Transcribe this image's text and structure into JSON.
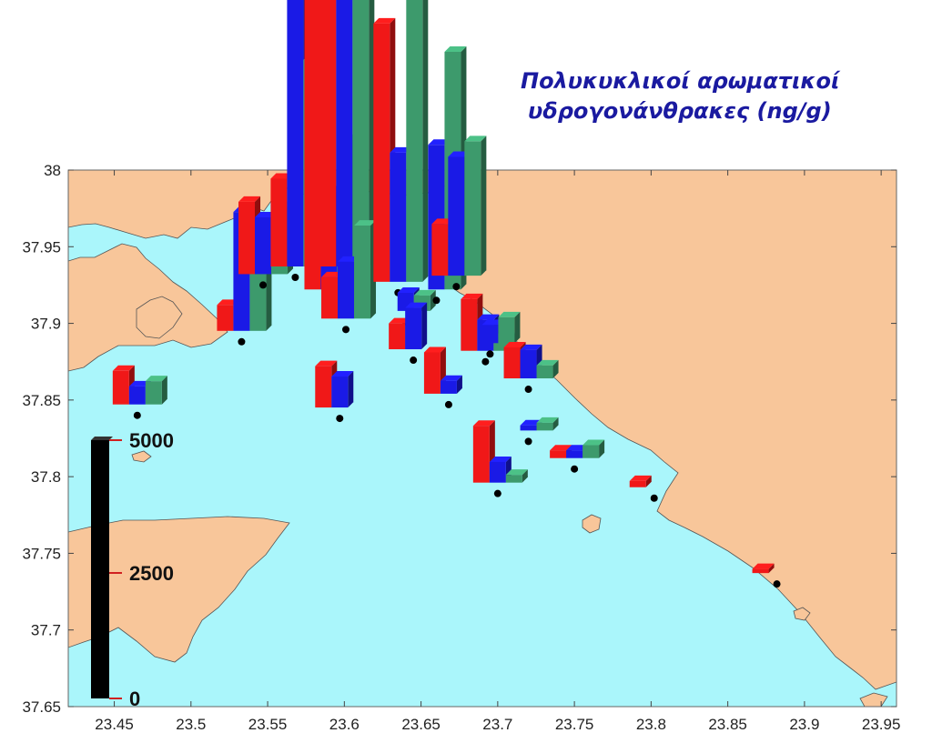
{
  "title": {
    "line1": "Πολυκυκλικοί αρωματικοί",
    "line2": "υδρογονάνθρακες (ng/g)"
  },
  "colors": {
    "sea": "#aaf6fb",
    "land": "#f8c69a",
    "coast": "#555555",
    "series": [
      "#f01818",
      "#1a1ae6",
      "#3d9a6c"
    ],
    "scale_bar": "#000000",
    "tick_mark": "#d02020"
  },
  "map": {
    "x_ticks": [
      "23.45",
      "23.5",
      "23.55",
      "23.6",
      "23.65",
      "23.7",
      "23.75",
      "23.8",
      "23.85",
      "23.9",
      "23.95"
    ],
    "y_ticks": [
      "38",
      "37.95",
      "37.9",
      "37.85",
      "37.8",
      "37.75",
      "37.7",
      "37.65"
    ],
    "x_range": [
      23.42,
      23.96
    ],
    "y_range": [
      37.65,
      38.0
    ]
  },
  "scale": {
    "max_label": "5000",
    "mid_label": "2500",
    "min_label": "0",
    "max_value": 5000
  },
  "chart_data": {
    "type": "bar",
    "unit": "ng/g",
    "series_count": 3,
    "stations": [
      {
        "lon": 23.465,
        "lat": 37.84,
        "values": [
          650,
          350,
          450
        ]
      },
      {
        "lon": 23.533,
        "lat": 37.888,
        "values": [
          500,
          2300,
          1700
        ]
      },
      {
        "lon": 23.547,
        "lat": 37.925,
        "values": [
          1400,
          1100,
          1300
        ]
      },
      {
        "lon": 23.568,
        "lat": 37.93,
        "values": [
          1700,
          5900,
          4000
        ]
      },
      {
        "lon": 23.59,
        "lat": 37.915,
        "values": [
          6900,
          1900,
          2900
        ]
      },
      {
        "lon": 23.6,
        "lat": 37.93,
        "values": [
          6400,
          7200,
          6800
        ]
      },
      {
        "lon": 23.601,
        "lat": 37.896,
        "values": [
          800,
          1100,
          1800
        ]
      },
      {
        "lon": 23.597,
        "lat": 37.838,
        "values": [
          800,
          600,
          0
        ]
      },
      {
        "lon": 23.635,
        "lat": 37.92,
        "values": [
          5000,
          2500,
          6600
        ]
      },
      {
        "lon": 23.64,
        "lat": 37.901,
        "values": [
          0,
          350,
          300
        ]
      },
      {
        "lon": 23.66,
        "lat": 37.915,
        "values": [
          0,
          2800,
          4600
        ]
      },
      {
        "lon": 23.645,
        "lat": 37.876,
        "values": [
          500,
          800,
          0
        ]
      },
      {
        "lon": 23.673,
        "lat": 37.924,
        "values": [
          1000,
          2300,
          2600
        ]
      },
      {
        "lon": 23.668,
        "lat": 37.847,
        "values": [
          800,
          250,
          0
        ]
      },
      {
        "lon": 23.692,
        "lat": 37.875,
        "values": [
          1000,
          600,
          250
        ]
      },
      {
        "lon": 23.695,
        "lat": 37.88,
        "values": [
          0,
          350,
          500
        ]
      },
      {
        "lon": 23.72,
        "lat": 37.857,
        "values": [
          600,
          550,
          250
        ]
      },
      {
        "lon": 23.72,
        "lat": 37.823,
        "values": [
          0,
          100,
          150
        ]
      },
      {
        "lon": 23.7,
        "lat": 37.789,
        "values": [
          1100,
          400,
          150
        ]
      },
      {
        "lon": 23.75,
        "lat": 37.805,
        "values": [
          150,
          150,
          250
        ]
      },
      {
        "lon": 23.802,
        "lat": 37.786,
        "values": [
          120,
          0,
          0
        ]
      },
      {
        "lon": 23.882,
        "lat": 37.73,
        "values": [
          80,
          0,
          0
        ]
      }
    ]
  }
}
